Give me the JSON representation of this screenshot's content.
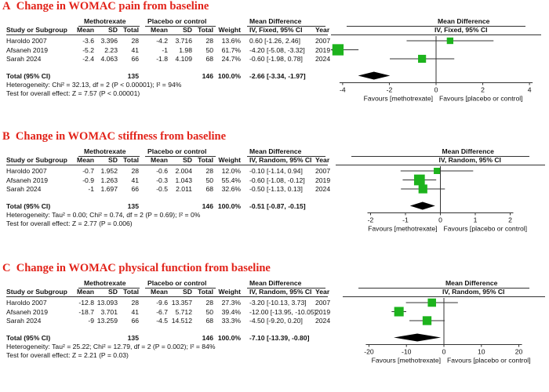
{
  "chart_data": [
    {
      "type": "forest",
      "panel_letter": "A",
      "title": "Change in WOMAC pain from baseline",
      "model": "IV, Fixed, 95% CI",
      "col_headers": {
        "group1": "Methotrexate",
        "group2": "Placebo or control",
        "md": "Mean Difference",
        "plot_md": "Mean Difference",
        "study": "Study or Subgroup",
        "mean": "Mean",
        "sd": "SD",
        "total": "Total",
        "weight": "Weight",
        "ci": "IV, Fixed, 95% CI",
        "year": "Year",
        "plot_ci": "IV, Fixed, 95% CI"
      },
      "studies": [
        {
          "name": "Haroldo 2007",
          "m1": "-3.6",
          "sd1": "3.396",
          "n1": "28",
          "m2": "-4.2",
          "sd2": "3.716",
          "n2": "28",
          "weight": "13.6%",
          "ci_text": "0.60 [-1.26, 2.46]",
          "year": "2007",
          "md": 0.6,
          "lo": -1.26,
          "hi": 2.46,
          "w": 13.6
        },
        {
          "name": "Afsaneh 2019",
          "m1": "-5.2",
          "sd1": "2.23",
          "n1": "41",
          "m2": "-1",
          "sd2": "1.98",
          "n2": "50",
          "weight": "61.7%",
          "ci_text": "-4.20 [-5.08, -3.32]",
          "year": "2019",
          "md": -4.2,
          "lo": -5.08,
          "hi": -3.32,
          "w": 61.7
        },
        {
          "name": "Sarah 2024",
          "m1": "-2.4",
          "sd1": "4.063",
          "n1": "66",
          "m2": "-1.8",
          "sd2": "4.109",
          "n2": "68",
          "weight": "24.7%",
          "ci_text": "-0.60 [-1.98, 0.78]",
          "year": "2024",
          "md": -0.6,
          "lo": -1.98,
          "hi": 0.78,
          "w": 24.7
        }
      ],
      "total": {
        "label": "Total (95% CI)",
        "n1": "135",
        "n2": "146",
        "weight": "100.0%",
        "ci_text": "-2.66 [-3.34, -1.97]",
        "md": -2.66,
        "lo": -3.34,
        "hi": -1.97
      },
      "heterogeneity": "Heterogeneity: Chi² = 32.13, df = 2 (P < 0.00001); I² = 94%",
      "overall_effect": "Test for overall effect: Z = 7.57 (P < 0.00001)",
      "axis": {
        "min": -4.5,
        "max": 4.5,
        "ticks": [
          -4,
          -2,
          0,
          2,
          4
        ],
        "tick_labels": [
          "-4",
          "-2",
          "0",
          "2",
          "4"
        ]
      },
      "favours_left": "Favours [methotrexate]",
      "favours_right": "Favours [placebo or control]"
    },
    {
      "type": "forest",
      "panel_letter": "B",
      "title": "Change in WOMAC stiffness from baseline",
      "model": "IV, Random, 95% CI",
      "col_headers": {
        "group1": "Methotrexate",
        "group2": "Placebo or control",
        "md": "Mean Difference",
        "plot_md": "Mean Difference",
        "study": "Study or Subgroup",
        "mean": "Mean",
        "sd": "SD",
        "total": "Total",
        "weight": "Weight",
        "ci": "IV, Random, 95% CI",
        "year": "Year",
        "plot_ci": "IV, Random, 95% CI"
      },
      "studies": [
        {
          "name": "Haroldo 2007",
          "m1": "-0.7",
          "sd1": "1.952",
          "n1": "28",
          "m2": "-0.6",
          "sd2": "2.004",
          "n2": "28",
          "weight": "12.0%",
          "ci_text": "-0.10 [-1.14, 0.94]",
          "year": "2007",
          "md": -0.1,
          "lo": -1.14,
          "hi": 0.94,
          "w": 12.0
        },
        {
          "name": "Afsaneh 2019",
          "m1": "-0.9",
          "sd1": "1.263",
          "n1": "41",
          "m2": "-0.3",
          "sd2": "1.043",
          "n2": "50",
          "weight": "55.4%",
          "ci_text": "-0.60 [-1.08, -0.12]",
          "year": "2019",
          "md": -0.6,
          "lo": -1.08,
          "hi": -0.12,
          "w": 55.4
        },
        {
          "name": "Sarah 2024",
          "m1": "-1",
          "sd1": "1.697",
          "n1": "66",
          "m2": "-0.5",
          "sd2": "2.011",
          "n2": "68",
          "weight": "32.6%",
          "ci_text": "-0.50 [-1.13, 0.13]",
          "year": "2024",
          "md": -0.5,
          "lo": -1.13,
          "hi": 0.13,
          "w": 32.6
        }
      ],
      "total": {
        "label": "Total (95% CI)",
        "n1": "135",
        "n2": "146",
        "weight": "100.0%",
        "ci_text": "-0.51 [-0.87, -0.15]",
        "md": -0.51,
        "lo": -0.87,
        "hi": -0.15
      },
      "heterogeneity": "Heterogeneity: Tau² = 0.00; Chi² = 0.74, df = 2 (P = 0.69); I² = 0%",
      "overall_effect": "Test for overall effect: Z = 2.77 (P = 0.006)",
      "axis": {
        "min": -3,
        "max": 3,
        "ticks": [
          -2,
          -1,
          0,
          1,
          2
        ],
        "tick_labels": [
          "-2",
          "-1",
          "0",
          "1",
          "2"
        ]
      },
      "favours_left": "Favours [methotrexate]",
      "favours_right": "Favours [placebo or control]"
    },
    {
      "type": "forest",
      "panel_letter": "C",
      "title": "Change in WOMAC physical function from baseline",
      "model": "IV, Random, 95% CI",
      "col_headers": {
        "group1": "Methotrexate",
        "group2": "Placebo or control",
        "md": "Mean Difference",
        "plot_md": "Mean Difference",
        "study": "Study or Subgroup",
        "mean": "Mean",
        "sd": "SD",
        "total": "Total",
        "weight": "Weight",
        "ci": "IV, Random, 95% CI",
        "year": "Year",
        "plot_ci": "IV, Random, 95% CI"
      },
      "studies": [
        {
          "name": "Haroldo 2007",
          "m1": "-12.8",
          "sd1": "13.093",
          "n1": "28",
          "m2": "-9.6",
          "sd2": "13.357",
          "n2": "28",
          "weight": "27.3%",
          "ci_text": "-3.20 [-10.13, 3.73]",
          "year": "2007",
          "md": -3.2,
          "lo": -10.13,
          "hi": 3.73,
          "w": 27.3
        },
        {
          "name": "Afsaneh 2019",
          "m1": "-18.7",
          "sd1": "3.701",
          "n1": "41",
          "m2": "-6.7",
          "sd2": "5.712",
          "n2": "50",
          "weight": "39.4%",
          "ci_text": "-12.00 [-13.95, -10.05]",
          "year": "2019",
          "md": -12.0,
          "lo": -13.95,
          "hi": -10.05,
          "w": 39.4
        },
        {
          "name": "Sarah 2024",
          "m1": "-9",
          "sd1": "13.259",
          "n1": "66",
          "m2": "-4.5",
          "sd2": "14.512",
          "n2": "68",
          "weight": "33.3%",
          "ci_text": "-4.50 [-9.20, 0.20]",
          "year": "2024",
          "md": -4.5,
          "lo": -9.2,
          "hi": 0.2,
          "w": 33.3
        }
      ],
      "total": {
        "label": "Total (95% CI)",
        "n1": "135",
        "n2": "146",
        "weight": "100.0%",
        "ci_text": "-7.10 [-13.39, -0.80]",
        "md": -7.1,
        "lo": -13.39,
        "hi": -0.8
      },
      "heterogeneity": "Heterogeneity: Tau² = 25.22; Chi² = 12.79, df = 2 (P = 0.002); I² = 84%",
      "overall_effect": "Test for overall effect: Z = 2.21 (P = 0.03)",
      "axis": {
        "min": -27,
        "max": 27,
        "ticks": [
          -20,
          -10,
          0,
          10,
          20
        ],
        "tick_labels": [
          "-20",
          "-10",
          "0",
          "10",
          "20"
        ]
      },
      "favours_left": "Favours [methotrexate]",
      "favours_right": "Favours [placebo or control]"
    }
  ],
  "colors": {
    "title": "#e2231a",
    "square": "#1db31d",
    "diamond": "#000000",
    "line": "#333333"
  }
}
